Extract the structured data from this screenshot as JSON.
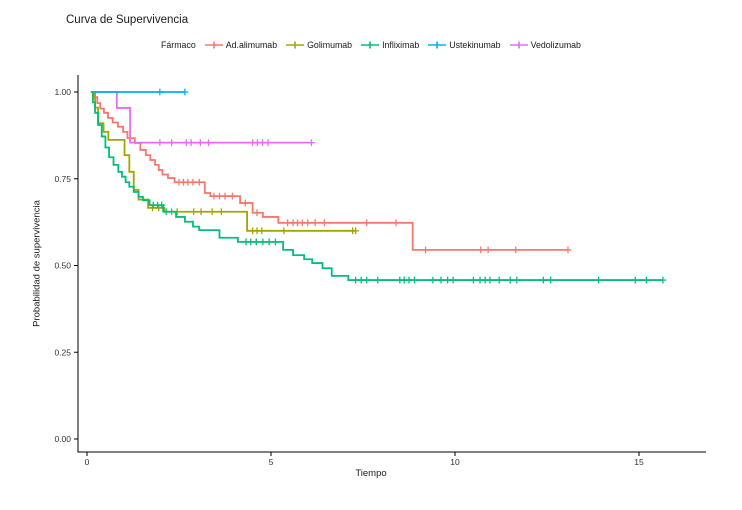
{
  "chart_data": {
    "type": "line",
    "subtype": "kaplan-meier-step-survival",
    "title": "Curva de Supervivencia",
    "legend_title": "Fármaco",
    "legend_position": "top",
    "xlabel": "Tiempo",
    "ylabel": "Probabilidad de supervivencia",
    "xlim": [
      0,
      16.2
    ],
    "ylim": [
      0,
      1.0
    ],
    "grid": false,
    "xticks": [
      {
        "value": 0,
        "label": "0"
      },
      {
        "value": 5,
        "label": "5"
      },
      {
        "value": 10,
        "label": "10"
      },
      {
        "value": 15,
        "label": "15"
      }
    ],
    "yticks": [
      {
        "value": 0,
        "label": "0.00"
      },
      {
        "value": 0.25,
        "label": "0.25"
      },
      {
        "value": 0.5,
        "label": "0.50"
      },
      {
        "value": 0.75,
        "label": "0.75"
      },
      {
        "value": 1,
        "label": "1.00"
      }
    ],
    "series": [
      {
        "name": "Ad.alimumab",
        "color": "#F8766D",
        "steps": [
          [
            0.14,
            1.0
          ],
          [
            0.2,
            0.985
          ],
          [
            0.28,
            0.968
          ],
          [
            0.36,
            0.952
          ],
          [
            0.46,
            0.94
          ],
          [
            0.57,
            0.925
          ],
          [
            0.7,
            0.912
          ],
          [
            0.84,
            0.9
          ],
          [
            0.98,
            0.885
          ],
          [
            1.1,
            0.867
          ],
          [
            1.3,
            0.853
          ],
          [
            1.45,
            0.833
          ],
          [
            1.6,
            0.818
          ],
          [
            1.72,
            0.804
          ],
          [
            1.85,
            0.79
          ],
          [
            1.95,
            0.775
          ],
          [
            2.05,
            0.762
          ],
          [
            2.2,
            0.752
          ],
          [
            2.38,
            0.74
          ],
          [
            3.2,
            0.709
          ],
          [
            3.35,
            0.7
          ],
          [
            4.16,
            0.68
          ],
          [
            4.5,
            0.652
          ],
          [
            4.78,
            0.64
          ],
          [
            5.2,
            0.623
          ],
          [
            8.85,
            0.545
          ]
        ],
        "end": 13.07,
        "censors": [
          2.5,
          2.62,
          2.74,
          2.88,
          3.05,
          3.45,
          3.6,
          3.75,
          3.95,
          4.3,
          4.62,
          5.45,
          5.6,
          5.72,
          5.85,
          6.0,
          6.2,
          6.45,
          7.6,
          8.4,
          9.2,
          10.7,
          10.9,
          11.65,
          13.07
        ]
      },
      {
        "name": "Golimumab",
        "color": "#A3A500",
        "steps": [
          [
            0.15,
            1.0
          ],
          [
            0.22,
            0.955
          ],
          [
            0.3,
            0.91
          ],
          [
            0.45,
            0.885
          ],
          [
            0.58,
            0.862
          ],
          [
            1.02,
            0.818
          ],
          [
            1.15,
            0.77
          ],
          [
            1.27,
            0.718
          ],
          [
            1.4,
            0.69
          ],
          [
            1.66,
            0.666
          ],
          [
            2.1,
            0.655
          ],
          [
            4.35,
            0.6
          ]
        ],
        "end": 7.3,
        "censors": [
          1.78,
          1.95,
          2.3,
          2.45,
          2.9,
          3.1,
          3.4,
          3.65,
          4.5,
          4.62,
          4.75,
          5.35,
          7.22,
          7.3
        ]
      },
      {
        "name": "Infliximab",
        "color": "#00BF7D",
        "steps": [
          [
            0.1,
            1.0
          ],
          [
            0.16,
            0.97
          ],
          [
            0.22,
            0.94
          ],
          [
            0.3,
            0.905
          ],
          [
            0.4,
            0.872
          ],
          [
            0.5,
            0.84
          ],
          [
            0.6,
            0.812
          ],
          [
            0.72,
            0.79
          ],
          [
            0.85,
            0.77
          ],
          [
            0.95,
            0.756
          ],
          [
            1.05,
            0.74
          ],
          [
            1.15,
            0.727
          ],
          [
            1.27,
            0.712
          ],
          [
            1.4,
            0.698
          ],
          [
            1.52,
            0.688
          ],
          [
            1.7,
            0.674
          ],
          [
            2.07,
            0.655
          ],
          [
            2.42,
            0.64
          ],
          [
            2.66,
            0.626
          ],
          [
            2.88,
            0.612
          ],
          [
            3.05,
            0.602
          ],
          [
            3.6,
            0.58
          ],
          [
            4.1,
            0.568
          ],
          [
            5.33,
            0.545
          ],
          [
            5.6,
            0.53
          ],
          [
            5.9,
            0.518
          ],
          [
            6.12,
            0.507
          ],
          [
            6.4,
            0.492
          ],
          [
            6.65,
            0.47
          ],
          [
            7.1,
            0.458
          ]
        ],
        "end": 15.65,
        "censors": [
          1.8,
          1.92,
          2.03,
          2.15,
          4.32,
          4.45,
          4.6,
          4.78,
          4.95,
          5.12,
          7.3,
          7.45,
          7.6,
          7.9,
          8.5,
          8.62,
          8.75,
          8.9,
          9.4,
          9.62,
          9.8,
          9.95,
          10.5,
          10.68,
          10.82,
          10.95,
          11.2,
          11.5,
          11.68,
          12.4,
          12.6,
          13.9,
          14.9,
          15.2,
          15.65
        ]
      },
      {
        "name": "Ustekinumab",
        "color": "#00B0F6",
        "steps": [
          [
            0.16,
            1.0
          ]
        ],
        "end": 2.66,
        "censors": [
          1.98,
          2.66
        ]
      },
      {
        "name": "Vedolizumab",
        "color": "#E76BF3",
        "steps": [
          [
            0.16,
            1.0
          ],
          [
            0.81,
            0.954
          ],
          [
            1.17,
            0.854
          ]
        ],
        "end": 6.1,
        "censors": [
          1.98,
          2.3,
          2.7,
          2.83,
          3.08,
          3.3,
          4.5,
          4.63,
          4.77,
          4.92,
          6.1
        ]
      }
    ]
  }
}
